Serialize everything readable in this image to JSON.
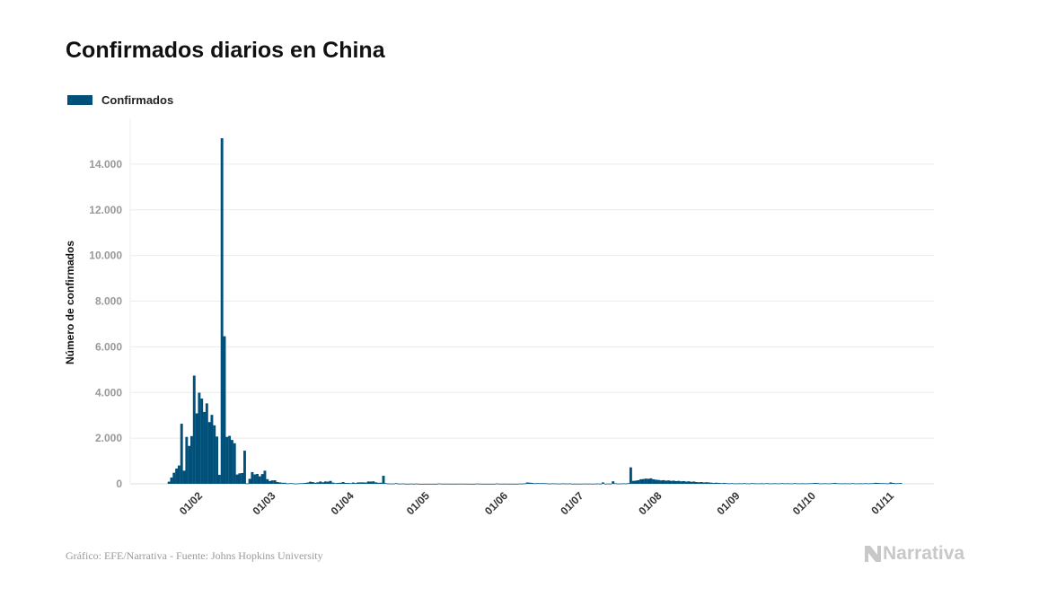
{
  "title": "Confirmados diarios en China",
  "source": "Gráfico: EFE/Narrativa - Fuente: Johns Hopkins University",
  "logo": "Narrativa",
  "chart_data": {
    "type": "bar",
    "title": "Confirmados diarios en China",
    "ylabel": "Número de confirmados",
    "xlabel": "",
    "ylim": [
      0,
      16000
    ],
    "yticks": [
      0,
      2000,
      4000,
      6000,
      8000,
      10000,
      12000,
      14000
    ],
    "ytick_labels": [
      "0",
      "2.000",
      "4.000",
      "6.000",
      "8.000",
      "10.000",
      "12.000",
      "14.000"
    ],
    "xtick_labels": [
      "01/02",
      "01/03",
      "01/04",
      "01/05",
      "01/06",
      "01/07",
      "01/08",
      "01/09",
      "01/10",
      "01/11"
    ],
    "grid": "horizontal",
    "legend": "top-left",
    "colors": {
      "bar": "#00507a",
      "grid": "#ececec",
      "axis": "#dddddd"
    },
    "series": [
      {
        "name": "Confirmados",
        "months": [
          {
            "month": "2020-01",
            "first_day": 23,
            "values": [
              95,
              277,
              486,
              669,
              802,
              2632,
              578,
              2054,
              1661
            ]
          },
          {
            "month": "2020-02",
            "first_day": 1,
            "values": [
              2089,
              4739,
              3086,
              3991,
              3733,
              3147,
              3523,
              2704,
              3019,
              2562,
              2071,
              394,
              15136,
              6463,
              2055,
              2100,
              1921,
              1777,
              408,
              458,
              473,
              1451,
              21,
              219,
              513,
              412,
              434,
              328,
              428
            ]
          },
          {
            "month": "2020-03",
            "first_day": 1,
            "values": [
              576,
              204,
              125,
              151,
              153,
              80,
              62,
              46,
              45,
              20,
              31,
              26,
              11,
              18,
              27,
              29,
              39,
              58,
              93,
              78,
              46,
              67,
              102,
              66,
              104,
              96,
              128,
              54,
              31,
              41,
              48
            ]
          },
          {
            "month": "2020-04",
            "first_day": 1,
            "values": [
              80,
              41,
              39,
              29,
              56,
              35,
              62,
              63,
              63,
              56,
              102,
              100,
              108,
              64,
              46,
              49,
              352,
              29,
              16,
              12,
              11,
              30,
              10,
              12,
              15,
              3,
              4,
              10,
              4,
              12
            ]
          },
          {
            "month": "2020-05",
            "first_day": 1,
            "values": [
              2,
              1,
              2,
              1,
              3,
              1,
              2,
              1,
              17,
              7,
              5,
              7,
              4,
              5,
              4,
              4,
              7,
              7,
              6,
              3,
              4,
              0,
              1,
              11,
              7,
              4,
              2,
              4,
              2,
              4,
              2
            ]
          },
          {
            "month": "2020-06",
            "first_day": 1,
            "values": [
              16,
              5,
              5,
              6,
              6,
              3,
              5,
              3,
              3,
              11,
              11,
              18,
              58,
              49,
              40,
              25,
              32,
              28,
              32,
              26,
              22,
              13,
              21,
              17,
              13,
              12,
              21,
              14,
              12,
              19
            ]
          },
          {
            "month": "2020-07",
            "first_day": 1,
            "values": [
              4,
              8,
              6,
              5,
              9,
              11,
              7,
              10,
              5,
              11,
              15,
              8,
              60,
              5,
              13,
              9,
              110,
              24,
              13,
              14,
              22,
              15,
              30,
              720,
              130,
              140,
              160,
              200,
              210,
              230,
              220
            ]
          },
          {
            "month": "2020-08",
            "first_day": 1,
            "values": [
              240,
              200,
              180,
              170,
              150,
              160,
              140,
              150,
              130,
              140,
              120,
              130,
              110,
              120,
              100,
              110,
              90,
              100,
              80,
              70,
              80,
              60,
              70,
              60,
              50,
              40,
              50,
              40,
              30,
              40,
              30
            ]
          },
          {
            "month": "2020-09",
            "first_day": 1,
            "values": [
              20,
              30,
              20,
              20,
              25,
              20,
              30,
              20,
              20,
              30,
              25,
              20,
              20,
              25,
              20,
              30,
              20,
              20,
              25,
              20,
              20,
              30,
              20,
              25,
              20,
              20,
              30,
              20,
              20,
              25
            ]
          },
          {
            "month": "2020-10",
            "first_day": 1,
            "values": [
              20,
              20,
              25,
              30,
              40,
              35,
              20,
              20,
              25,
              20,
              20,
              30,
              40,
              25,
              20,
              20,
              25,
              20,
              20,
              30,
              20,
              20,
              25,
              20,
              30,
              20,
              25,
              30,
              45,
              40,
              30
            ]
          },
          {
            "month": "2020-11",
            "first_day": 1,
            "values": [
              30,
              25,
              20,
              60,
              40,
              25,
              30,
              35
            ]
          }
        ]
      }
    ]
  }
}
